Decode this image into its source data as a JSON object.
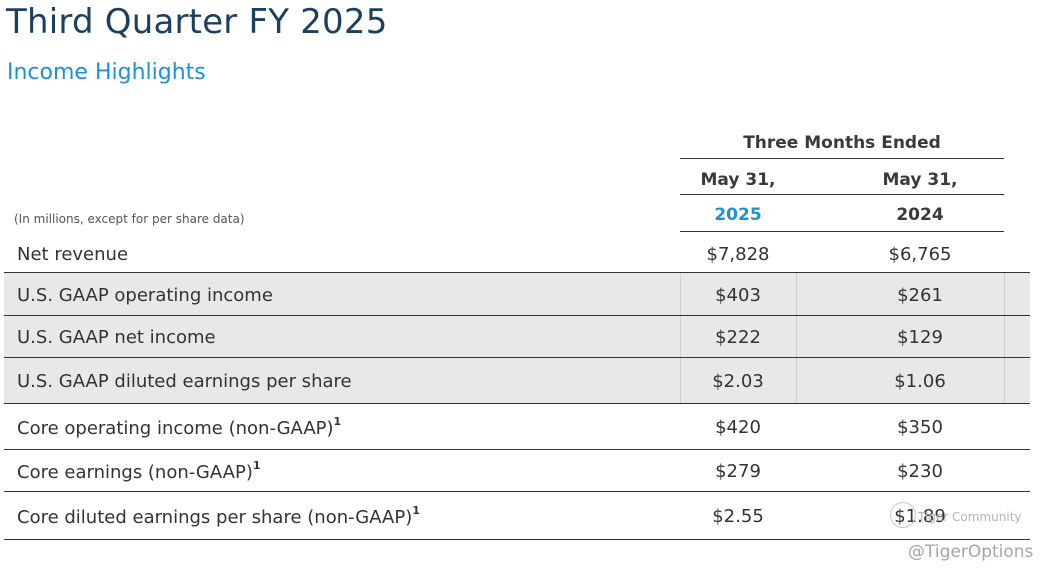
{
  "header": {
    "title": "Third Quarter FY 2025",
    "subtitle": "Income Highlights"
  },
  "table": {
    "note": "(In millions, except for per share data)",
    "column_group": "Three Months Ended",
    "columns": [
      {
        "date": "May 31,",
        "year": "2025"
      },
      {
        "date": "May 31,",
        "year": "2024"
      }
    ],
    "rows": [
      {
        "label": "Net revenue",
        "footnote": "",
        "values": [
          "$7,828",
          "$6,765"
        ]
      },
      {
        "label": "U.S. GAAP operating income",
        "footnote": "",
        "values": [
          "$403",
          "$261"
        ]
      },
      {
        "label": "U.S. GAAP net income",
        "footnote": "",
        "values": [
          "$222",
          "$129"
        ]
      },
      {
        "label": "U.S. GAAP diluted earnings per share",
        "footnote": "",
        "values": [
          "$2.03",
          "$1.06"
        ]
      },
      {
        "label": "Core operating income (non-GAAP)",
        "footnote": "1",
        "values": [
          "$420",
          "$350"
        ]
      },
      {
        "label": "Core earnings (non-GAAP)",
        "footnote": "1",
        "values": [
          "$279",
          "$230"
        ]
      },
      {
        "label": "Core diluted earnings per share (non-GAAP)",
        "footnote": "1",
        "values": [
          "$2.55",
          "$1.89"
        ]
      }
    ]
  },
  "watermark": {
    "community": "Tiger Community",
    "handle": "@TigerOptions"
  },
  "colors": {
    "title": "#1c3f5f",
    "accent": "#1b93d4",
    "shaded_row": "#e8e8e8"
  }
}
